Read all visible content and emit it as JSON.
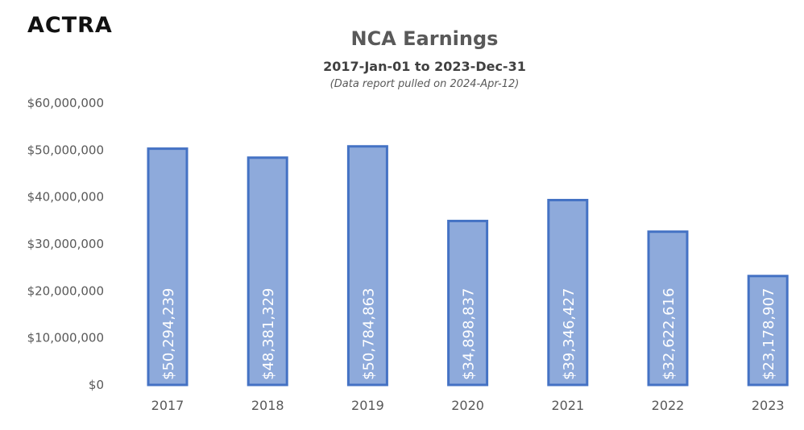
{
  "logo": "ACTRA",
  "chart_data": {
    "type": "bar",
    "title": "NCA Earnings",
    "subtitle": "2017-Jan-01 to 2023-Dec-31",
    "note": "(Data report pulled on 2024-Apr-12)",
    "categories": [
      "2017",
      "2018",
      "2019",
      "2020",
      "2021",
      "2022",
      "2023"
    ],
    "values": [
      50294239,
      48381329,
      50784863,
      34898837,
      39346427,
      32622616,
      23178907
    ],
    "data_labels": [
      "$50,294,239",
      "$48,381,329",
      "$50,784,863",
      "$34,898,837",
      "$39,346,427",
      "$32,622,616",
      "$23,178,907"
    ],
    "ylim": [
      0,
      60000000
    ],
    "yticks": [
      0,
      10000000,
      20000000,
      30000000,
      40000000,
      50000000,
      60000000
    ],
    "ytick_labels": [
      "$0",
      "$10,000,000",
      "$20,000,000",
      "$30,000,000",
      "$40,000,000",
      "$50,000,000",
      "$60,000,000"
    ],
    "grid": false,
    "bar_fill": "#8eaadb",
    "bar_stroke": "#4472c4"
  }
}
